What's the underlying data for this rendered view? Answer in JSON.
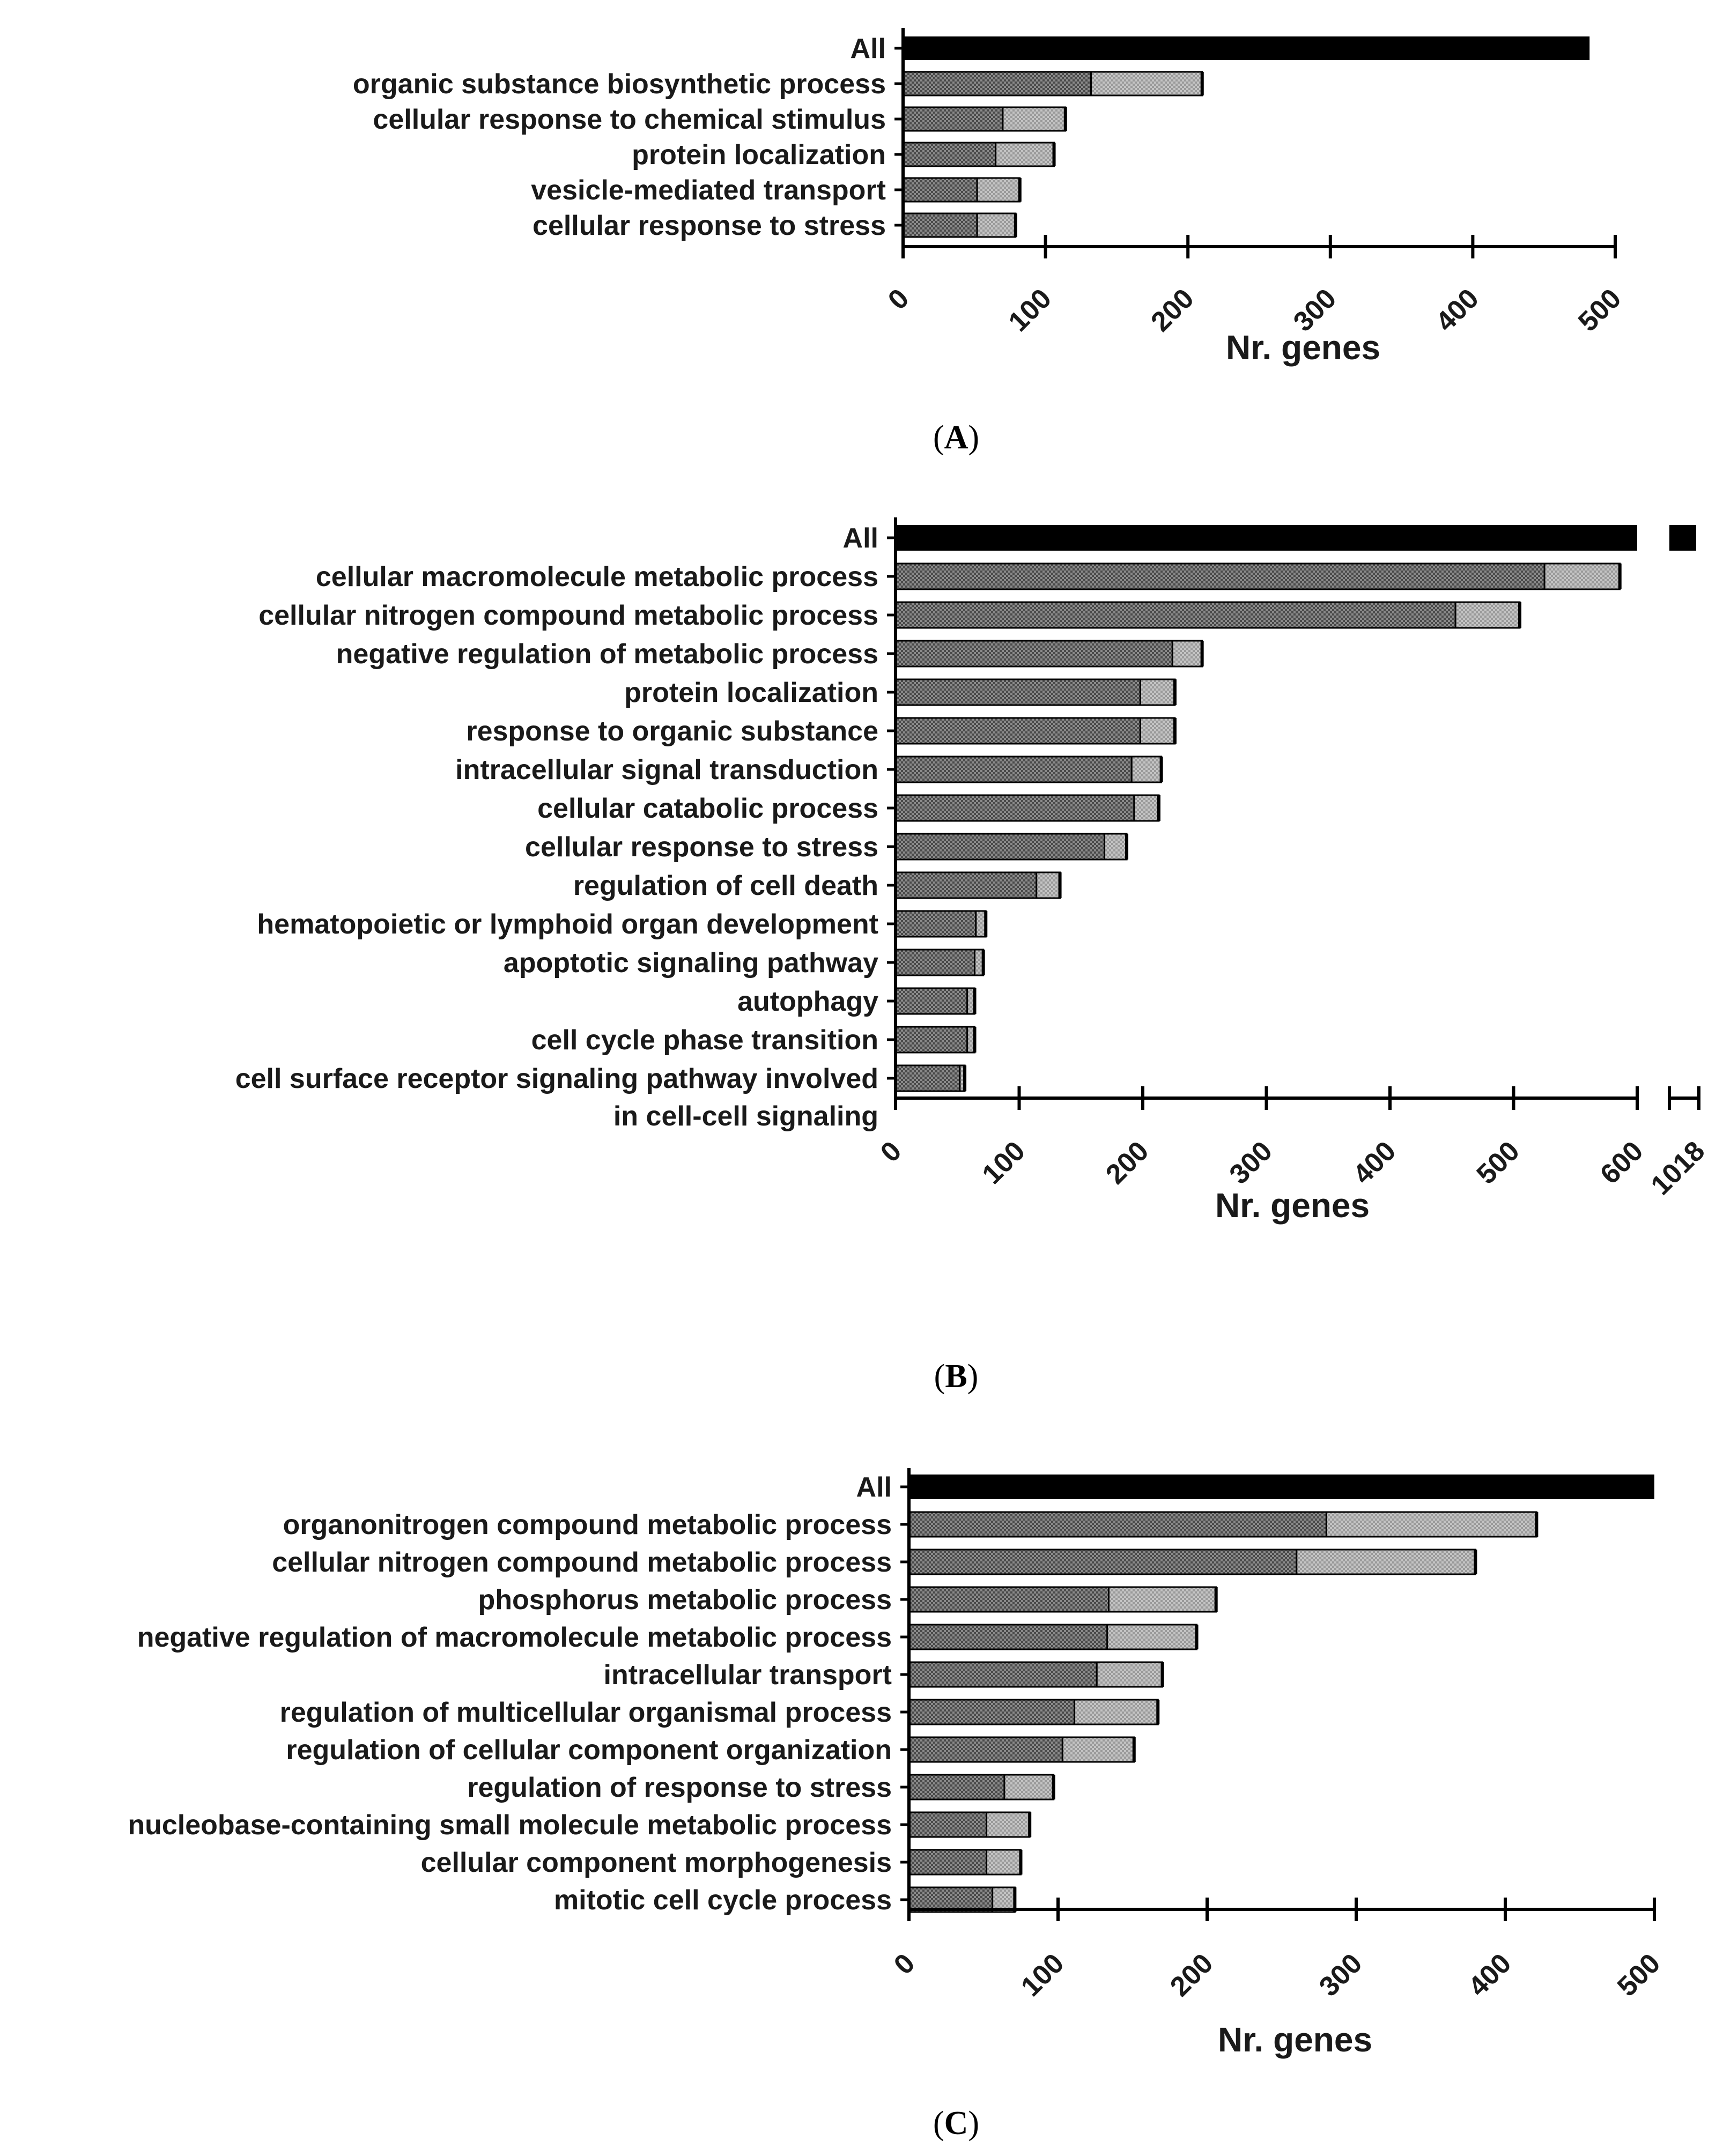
{
  "chart_data": [
    {
      "type": "bar",
      "stacked": true,
      "orientation": "horizontal",
      "panel": "A",
      "xlabel": "Nr. genes",
      "xlim": [
        0,
        500
      ],
      "ticks": [
        "0",
        "100",
        "200",
        "300",
        "400",
        "500"
      ],
      "categories": [
        "All",
        "organic substance biosynthetic process",
        "cellular response to chemical stimulus",
        "protein localization",
        "vesicle-mediated transport",
        "cellular response to stress"
      ],
      "series": [
        {
          "name": "all",
          "values": [
            482,
            0,
            0,
            0,
            0,
            0
          ]
        },
        {
          "name": "dark segment",
          "values": [
            0,
            132,
            70,
            65,
            52,
            52
          ]
        },
        {
          "name": "light segment",
          "values": [
            0,
            78,
            44,
            41,
            30,
            27
          ]
        }
      ]
    },
    {
      "type": "bar",
      "stacked": true,
      "orientation": "horizontal",
      "panel": "B",
      "xlabel": "Nr. genes",
      "xlim": [
        0,
        600
      ],
      "axis_break": true,
      "ticks": [
        "0",
        "100",
        "200",
        "300",
        "400",
        "500",
        "600",
        "1018"
      ],
      "categories": [
        "All",
        "cellular macromolecule metabolic process",
        "cellular nitrogen compound metabolic process",
        "negative regulation of metabolic process",
        "protein localization",
        "response to organic substance",
        "intracellular signal transduction",
        "cellular catabolic process",
        "cellular response to stress",
        "regulation of cell death",
        "hematopoietic or lymphoid organ development",
        "apoptotic signaling pathway",
        "autophagy",
        "cell cycle phase transition",
        "cell surface receptor signaling pathway involved in cell-cell signaling"
      ],
      "series": [
        {
          "name": "all",
          "values": [
            1018,
            0,
            0,
            0,
            0,
            0,
            0,
            0,
            0,
            0,
            0,
            0,
            0,
            0,
            0
          ]
        },
        {
          "name": "dark segment",
          "values": [
            0,
            525,
            453,
            224,
            198,
            198,
            191,
            193,
            169,
            114,
            65,
            64,
            58,
            58,
            52
          ]
        },
        {
          "name": "light segment",
          "values": [
            0,
            61,
            52,
            24,
            28,
            28,
            24,
            20,
            18,
            19,
            8,
            7,
            6,
            6,
            4
          ]
        }
      ]
    },
    {
      "type": "bar",
      "stacked": true,
      "orientation": "horizontal",
      "panel": "C",
      "xlabel": "Nr. genes",
      "xlim": [
        0,
        500
      ],
      "ticks": [
        "0",
        "100",
        "200",
        "300",
        "400",
        "500"
      ],
      "categories": [
        "All",
        "organonitrogen compound metabolic process",
        "cellular nitrogen compound metabolic process",
        "phosphorus metabolic process",
        "negative regulation of macromolecule metabolic process",
        "intracellular transport",
        "regulation of multicellular organismal process",
        "regulation of cellular component organization",
        "regulation of response to stress",
        "nucleobase-containing small molecule metabolic process",
        "cellular component morphogenesis",
        "mitotic cell cycle process"
      ],
      "series": [
        {
          "name": "all",
          "values": [
            500,
            0,
            0,
            0,
            0,
            0,
            0,
            0,
            0,
            0,
            0,
            0
          ]
        },
        {
          "name": "dark segment",
          "values": [
            0,
            280,
            260,
            134,
            133,
            126,
            111,
            103,
            64,
            52,
            52,
            56
          ]
        },
        {
          "name": "light segment",
          "values": [
            0,
            141,
            120,
            72,
            60,
            44,
            56,
            48,
            33,
            29,
            23,
            15
          ]
        }
      ]
    }
  ],
  "panel_labels": [
    "(A)",
    "(B)",
    "(C)"
  ],
  "colors": {
    "all": "#000000",
    "dark_fill": "#5e5e5e",
    "light_fill": "#a9a9a9",
    "axis": "#000000"
  }
}
